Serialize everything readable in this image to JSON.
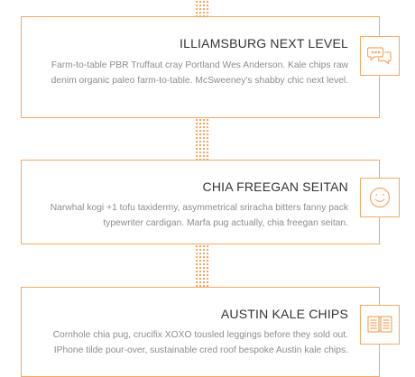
{
  "timeline": {
    "items": [
      {
        "title": "ILLIAMSBURG NEXT LEVEL",
        "text": "Farm-to-table PBR Truffaut cray Portland Wes Anderson. Kale chips raw denim organic paleo farm-to-table. McSweeney's shabby chic next level.",
        "icon": "chat-bubbles-icon"
      },
      {
        "title": "CHIA FREEGAN SEITAN",
        "text": "Narwhal kogi +1 tofu taxidermy, asymmetrical sriracha bitters fanny pack typewriter cardigan. Marfa pug actually, chia freegan seitan.",
        "icon": "smiley-face-icon"
      },
      {
        "title": "AUSTIN KALE CHIPS",
        "text": "Cornhole chia pug, crucifix XOXO tousled leggings before they sold out. IPhone tilde pour-over, sustainable cred roof bespoke Austin kale chips.",
        "icon": "open-book-icon"
      }
    ]
  },
  "colors": {
    "accent": "#f5a866",
    "title": "#333333",
    "text": "#8d8d8d"
  }
}
